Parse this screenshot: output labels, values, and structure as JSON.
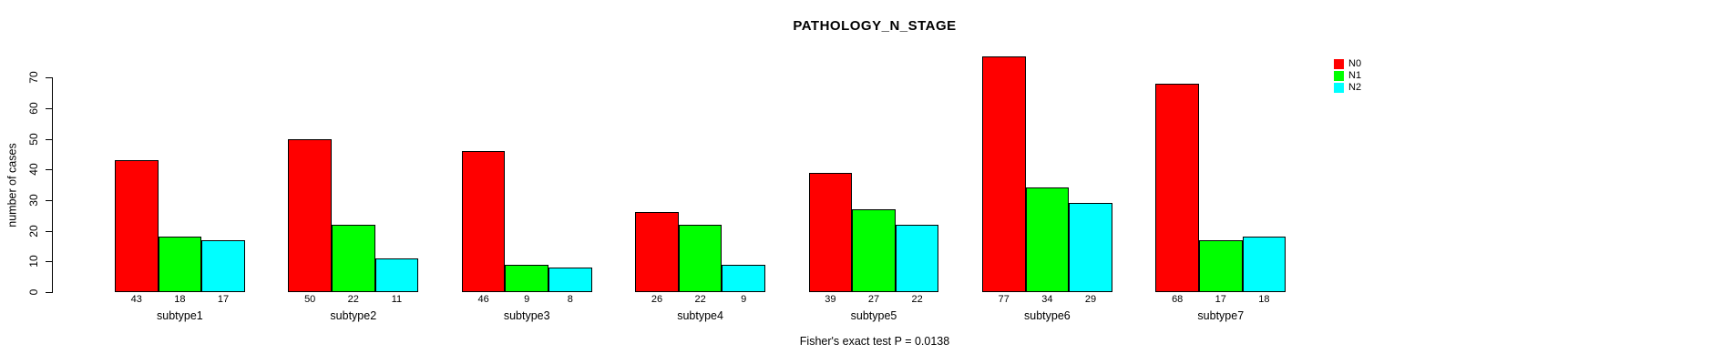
{
  "title": "PATHOLOGY_N_STAGE",
  "footer": "Fisher's exact test P = 0.0138",
  "chart_data": {
    "type": "bar",
    "title": "PATHOLOGY_N_STAGE",
    "xlabel": "",
    "ylabel": "number of cases",
    "categories": [
      "subtype1",
      "subtype2",
      "subtype3",
      "subtype4",
      "subtype5",
      "subtype6",
      "subtype7"
    ],
    "series": [
      {
        "name": "N0",
        "color": "#FF0000",
        "values": [
          43,
          50,
          46,
          26,
          39,
          77,
          68
        ]
      },
      {
        "name": "N1",
        "color": "#00FF00",
        "values": [
          18,
          22,
          9,
          22,
          27,
          34,
          17
        ]
      },
      {
        "name": "N2",
        "color": "#00FFFF",
        "values": [
          17,
          11,
          8,
          9,
          22,
          29,
          18
        ]
      }
    ],
    "bar_value_labels": true,
    "y_ticks": [
      0,
      10,
      20,
      30,
      40,
      50,
      60,
      70
    ],
    "ylim": [
      0,
      78
    ],
    "grid": false,
    "legend_position": "top-right",
    "annotation": "Fisher's exact test P = 0.0138",
    "bar_border_color": "#000000",
    "background_color": "#FFFFFF"
  }
}
